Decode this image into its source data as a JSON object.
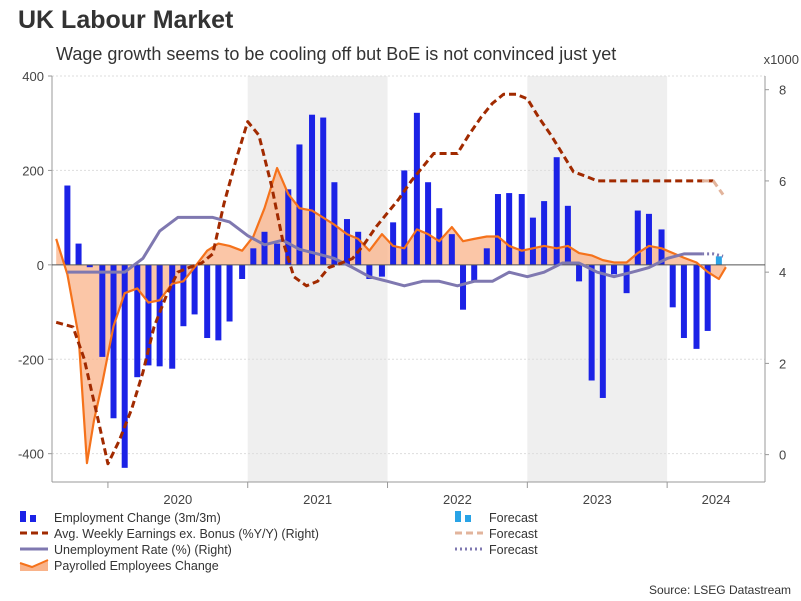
{
  "header": {
    "title": "UK Labour Market",
    "subtitle": "Wage growth seems to be cooling off but BoE is not convinced just yet",
    "source": "Source: LSEG Datastream"
  },
  "colors": {
    "employment": "#1b22e6",
    "employment_forecast": "#29a3e6",
    "earnings": "#a12a00",
    "earnings_forecast": "#e2b49c",
    "unemployment": "#7f78b0",
    "unemployment_forecast": "#7f78b0",
    "payrolled_line": "#f5721b",
    "payrolled_fill": "#f9b38a",
    "shade": "#efefef"
  },
  "chart_data": {
    "type": "bar+line",
    "title": "UK Labour Market",
    "left_axis": {
      "ylim": [
        -460,
        400
      ],
      "ticks": [
        400,
        200,
        0,
        -200,
        -400
      ]
    },
    "right_axis": {
      "ylim": [
        -0.6,
        8.3
      ],
      "ticks": [
        8,
        6,
        4,
        2,
        0
      ],
      "unit_label": "x1000"
    },
    "x_axis": {
      "range": [
        2019.6,
        2024.7
      ],
      "year_labels": [
        "2020",
        "2021",
        "2022",
        "2023",
        "2024"
      ],
      "shaded_years": [
        2021,
        2023
      ]
    },
    "series": [
      {
        "name": "Employment Change (3m/3m)",
        "axis": "left",
        "kind": "bar",
        "x": [
          2019.71,
          2019.79,
          2019.87,
          2019.96,
          2020.04,
          2020.12,
          2020.21,
          2020.29,
          2020.37,
          2020.46,
          2020.54,
          2020.62,
          2020.71,
          2020.79,
          2020.87,
          2020.96,
          2021.04,
          2021.12,
          2021.21,
          2021.29,
          2021.37,
          2021.46,
          2021.54,
          2021.62,
          2021.71,
          2021.79,
          2021.87,
          2021.96,
          2022.04,
          2022.12,
          2022.21,
          2022.29,
          2022.37,
          2022.46,
          2022.54,
          2022.62,
          2022.71,
          2022.79,
          2022.87,
          2022.96,
          2023.04,
          2023.12,
          2023.21,
          2023.29,
          2023.37,
          2023.46,
          2023.54,
          2023.62,
          2023.71,
          2023.79,
          2023.87,
          2023.96,
          2024.04,
          2024.12,
          2024.21,
          2024.29
        ],
        "values": [
          168,
          45,
          -5,
          -195,
          -325,
          -430,
          -238,
          -213,
          -215,
          -220,
          -130,
          -105,
          -155,
          -160,
          -120,
          -30,
          35,
          70,
          45,
          160,
          255,
          318,
          312,
          175,
          97,
          70,
          -30,
          -25,
          90,
          200,
          322,
          175,
          120,
          65,
          -95,
          -35,
          35,
          150,
          152,
          150,
          100,
          135,
          228,
          125,
          -35,
          -245,
          -282,
          -20,
          -60,
          115,
          108,
          75,
          -90,
          -155,
          -178,
          -140
        ]
      },
      {
        "name": "Forecast",
        "axis": "left",
        "kind": "bar",
        "x": [
          2024.37
        ],
        "values": [
          18
        ]
      },
      {
        "name": "Avg. Weekly Earnings ex. Bonus (%Y/Y) (Right)",
        "axis": "right",
        "kind": "dashed-line",
        "x": [
          2019.63,
          2019.75,
          2019.83,
          2019.92,
          2020.0,
          2020.08,
          2020.17,
          2020.25,
          2020.33,
          2020.42,
          2020.5,
          2020.58,
          2020.67,
          2020.75,
          2020.83,
          2020.92,
          2021.0,
          2021.08,
          2021.17,
          2021.25,
          2021.33,
          2021.42,
          2021.5,
          2021.58,
          2021.67,
          2021.75,
          2021.83,
          2021.92,
          2022.0,
          2022.08,
          2022.17,
          2022.25,
          2022.33,
          2022.42,
          2022.5,
          2022.58,
          2022.67,
          2022.75,
          2022.83,
          2022.92,
          2023.0,
          2023.08,
          2023.17,
          2023.25,
          2023.33,
          2023.42,
          2023.5,
          2023.58,
          2023.67,
          2023.75,
          2023.83,
          2023.92,
          2024.0,
          2024.08,
          2024.17,
          2024.25,
          2024.33
        ],
        "values": [
          2.9,
          2.8,
          2.1,
          0.9,
          -0.2,
          0.3,
          1.0,
          1.8,
          2.8,
          3.5,
          4.0,
          4.1,
          4.2,
          4.4,
          5.5,
          6.5,
          7.3,
          7.0,
          5.9,
          4.7,
          3.9,
          3.7,
          3.8,
          4.1,
          4.2,
          4.3,
          4.6,
          5.0,
          5.3,
          5.6,
          6.0,
          6.3,
          6.6,
          6.6,
          6.6,
          7.0,
          7.4,
          7.7,
          7.9,
          7.9,
          7.8,
          7.4,
          7.0,
          6.6,
          6.2,
          6.1,
          6.0,
          6.0,
          6.0,
          6.0,
          6.0,
          6.0,
          6.0,
          6.0,
          6.0,
          6.0,
          6.0
        ]
      },
      {
        "name": "Forecast",
        "axis": "right",
        "kind": "dashed-line",
        "x": [
          2024.25,
          2024.33,
          2024.4
        ],
        "values": [
          6.0,
          6.0,
          5.7
        ]
      },
      {
        "name": "Unemployment Rate (%) (Right)",
        "axis": "right",
        "kind": "line",
        "x": [
          2019.71,
          2019.83,
          2020.0,
          2020.12,
          2020.25,
          2020.37,
          2020.5,
          2020.62,
          2020.75,
          2020.87,
          2021.0,
          2021.12,
          2021.25,
          2021.37,
          2021.5,
          2021.62,
          2021.75,
          2021.87,
          2022.0,
          2022.12,
          2022.25,
          2022.37,
          2022.5,
          2022.62,
          2022.75,
          2022.87,
          2023.0,
          2023.12,
          2023.25,
          2023.37,
          2023.5,
          2023.62,
          2023.75,
          2023.87,
          2024.0,
          2024.12,
          2024.25
        ],
        "values": [
          4.0,
          4.0,
          4.0,
          4.0,
          4.3,
          4.9,
          5.2,
          5.2,
          5.2,
          5.1,
          4.8,
          4.6,
          4.7,
          4.5,
          4.4,
          4.3,
          4.1,
          3.9,
          3.8,
          3.7,
          3.8,
          3.8,
          3.7,
          3.8,
          3.8,
          4.0,
          3.9,
          4.0,
          4.2,
          4.2,
          4.0,
          3.9,
          4.0,
          4.1,
          4.3,
          4.4,
          4.4
        ]
      },
      {
        "name": "Forecast",
        "axis": "right",
        "kind": "dotted-line",
        "x": [
          2024.25,
          2024.33,
          2024.4
        ],
        "values": [
          4.4,
          4.4,
          4.35
        ]
      },
      {
        "name": "Payrolled Employees Change",
        "axis": "left",
        "kind": "area",
        "x": [
          2019.63,
          2019.71,
          2019.79,
          2019.85,
          2019.9,
          2019.96,
          2020.04,
          2020.12,
          2020.21,
          2020.29,
          2020.37,
          2020.46,
          2020.54,
          2020.62,
          2020.71,
          2020.79,
          2020.87,
          2020.96,
          2021.04,
          2021.12,
          2021.21,
          2021.29,
          2021.37,
          2021.46,
          2021.54,
          2021.62,
          2021.71,
          2021.79,
          2021.87,
          2021.96,
          2022.04,
          2022.12,
          2022.21,
          2022.29,
          2022.37,
          2022.46,
          2022.54,
          2022.62,
          2022.71,
          2022.79,
          2022.87,
          2022.96,
          2023.04,
          2023.12,
          2023.21,
          2023.29,
          2023.37,
          2023.46,
          2023.54,
          2023.62,
          2023.71,
          2023.79,
          2023.87,
          2023.96,
          2024.04,
          2024.12,
          2024.21,
          2024.29,
          2024.37,
          2024.42
        ],
        "values": [
          55,
          -20,
          -150,
          -420,
          -330,
          -250,
          -130,
          -60,
          -50,
          -80,
          -75,
          -40,
          -35,
          -5,
          30,
          45,
          40,
          30,
          60,
          120,
          205,
          150,
          120,
          115,
          100,
          85,
          65,
          55,
          30,
          65,
          40,
          35,
          75,
          65,
          50,
          80,
          50,
          55,
          60,
          60,
          40,
          30,
          35,
          40,
          35,
          40,
          25,
          20,
          10,
          5,
          5,
          25,
          40,
          35,
          25,
          15,
          5,
          -15,
          -30,
          -5
        ]
      }
    ],
    "legend": [
      {
        "label": "Employment Change (3m/3m)",
        "symbol": "bars",
        "color_key": "employment"
      },
      {
        "label": "Forecast",
        "symbol": "bars",
        "color_key": "employment_forecast"
      },
      {
        "label": "Avg. Weekly Earnings ex. Bonus (%Y/Y) (Right)",
        "symbol": "dash",
        "color_key": "earnings"
      },
      {
        "label": "Forecast",
        "symbol": "dash",
        "color_key": "earnings_forecast"
      },
      {
        "label": "Unemployment Rate (%) (Right)",
        "symbol": "line",
        "color_key": "unemployment"
      },
      {
        "label": "Forecast",
        "symbol": "dot",
        "color_key": "unemployment_forecast"
      },
      {
        "label": "Payrolled Employees Change",
        "symbol": "area",
        "color_key": "payrolled_line"
      }
    ]
  }
}
